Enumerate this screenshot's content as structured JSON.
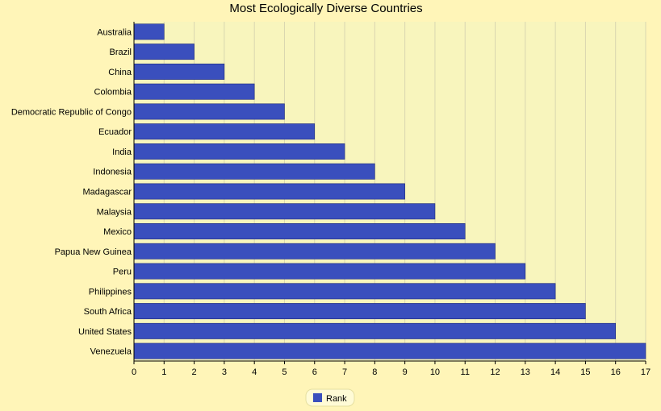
{
  "chart_data": {
    "type": "bar",
    "orientation": "horizontal",
    "title": "Most Ecologically Diverse Countries",
    "xlabel": "",
    "ylabel": "",
    "xlim": [
      0,
      17
    ],
    "x_ticks": [
      0,
      1,
      2,
      3,
      4,
      5,
      6,
      7,
      8,
      9,
      10,
      11,
      12,
      13,
      14,
      15,
      16,
      17
    ],
    "grid": "vertical",
    "legend_position": "bottom-center",
    "categories": [
      "Australia",
      "Brazil",
      "China",
      "Colombia",
      "Democratic Republic of Congo",
      "Ecuador",
      "India",
      "Indonesia",
      "Madagascar",
      "Malaysia",
      "Mexico",
      "Papua New Guinea",
      "Peru",
      "Philippines",
      "South Africa",
      "United States",
      "Venezuela"
    ],
    "series": [
      {
        "name": "Rank",
        "color": "#3a4fbd",
        "values": [
          1,
          2,
          3,
          4,
          5,
          6,
          7,
          8,
          9,
          10,
          11,
          12,
          13,
          14,
          15,
          16,
          17
        ]
      }
    ]
  },
  "colors": {
    "page_background": "#fff5b8",
    "plot_background": "#f8f5bd",
    "bar": "#3a4fbd",
    "bar_stroke": "#1e2a7a",
    "grid": "#d9d6b0"
  }
}
